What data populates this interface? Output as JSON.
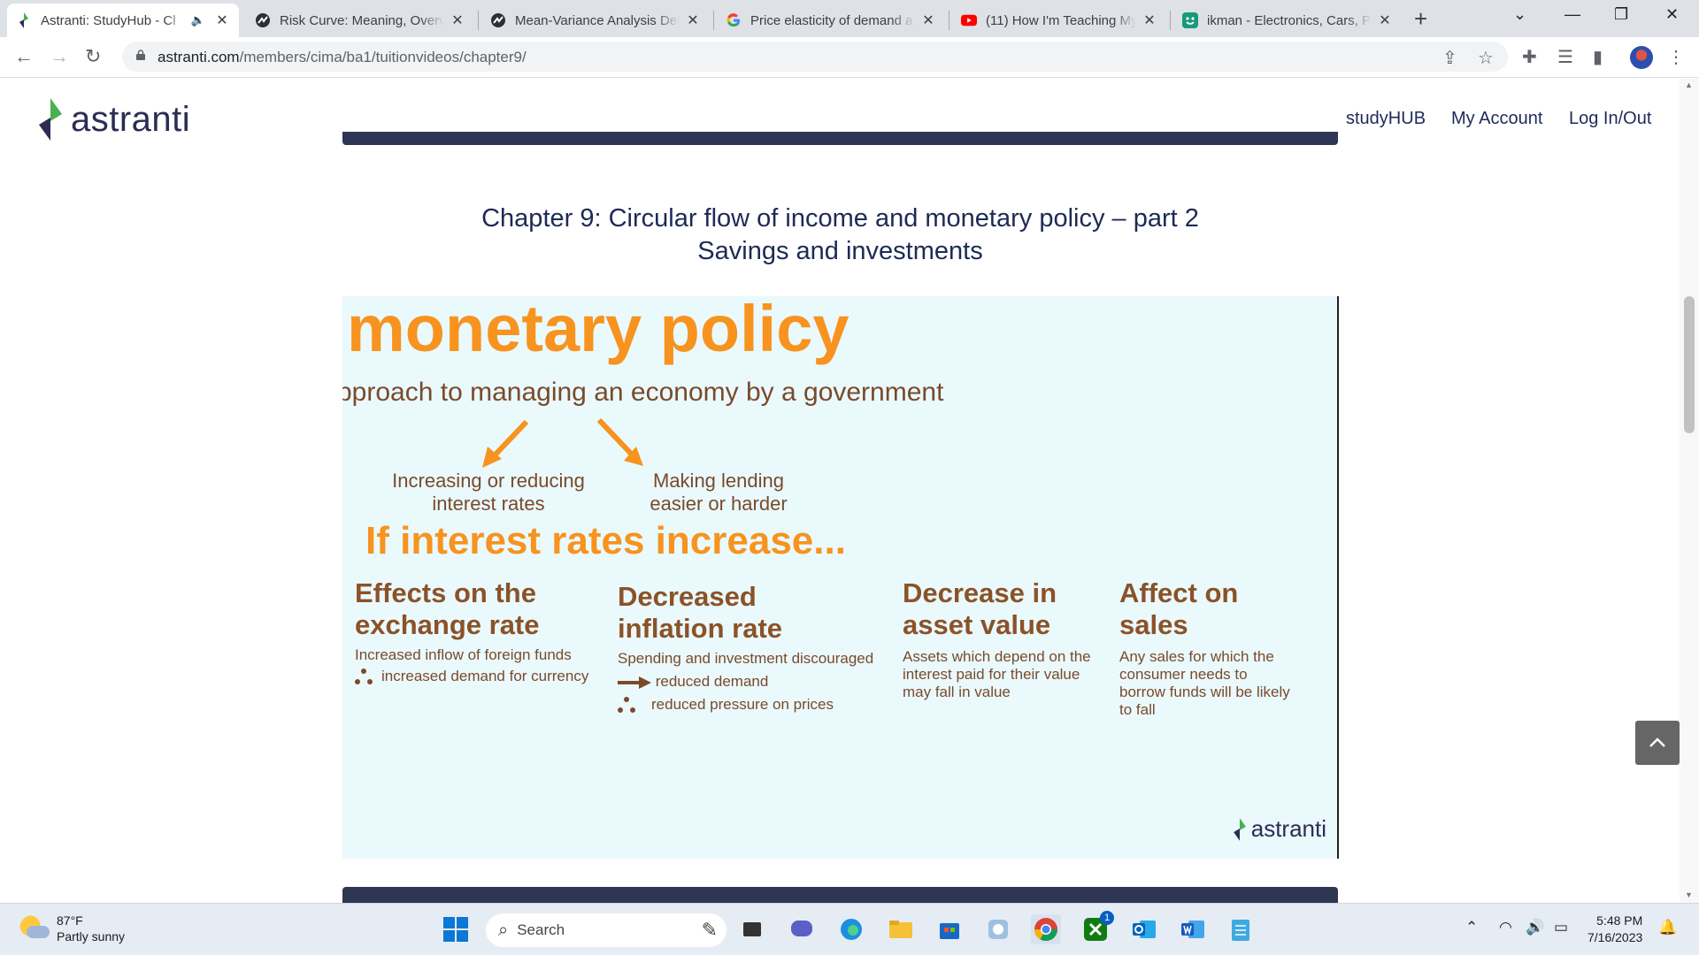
{
  "browser": {
    "tabs": [
      {
        "title": "Astranti: StudyHub - Cl",
        "active": true,
        "icon": "astranti-leaf-icon"
      },
      {
        "title": "Risk Curve: Meaning, Overv",
        "active": false,
        "icon": "investopedia-icon"
      },
      {
        "title": "Mean-Variance Analysis Def",
        "active": false,
        "icon": "investopedia-icon"
      },
      {
        "title": "Price elasticity of demand a",
        "active": false,
        "icon": "google-icon"
      },
      {
        "title": "(11) How I'm Teaching Myse",
        "active": false,
        "icon": "youtube-icon"
      },
      {
        "title": "ikman - Electronics, Cars, Pr",
        "active": false,
        "icon": "ikman-icon"
      }
    ],
    "url_host": "astranti.com",
    "url_path": "/members/cima/ba1/tuitionvideos/chapter9/"
  },
  "site": {
    "logo_text": "astranti",
    "nav": [
      "studyHUB",
      "My Account",
      "Log In/Out"
    ]
  },
  "content": {
    "chapter_title_line1": "Chapter 9: Circular flow of income and monetary policy – part 2",
    "chapter_title_line2": "Savings and investments"
  },
  "slide": {
    "heading": "monetary policy",
    "subheading": "pproach to managing an economy by a government",
    "branch_left_1": "Increasing or reducing",
    "branch_left_2": "interest rates",
    "branch_right_1": "Making lending",
    "branch_right_2": "easier or harder",
    "if_heading": "If interest rates increase...",
    "columns": [
      {
        "title_1": "Effects on the",
        "title_2": "exchange rate",
        "line1": "Increased inflow of foreign funds",
        "line2": "increased demand for currency"
      },
      {
        "title_1": "Decreased",
        "title_2": "inflation rate",
        "line1": "Spending and investment discouraged",
        "line2": "reduced demand",
        "line3": "reduced pressure on prices"
      },
      {
        "title_1": "Decrease in",
        "title_2": "asset value",
        "line1": "Assets which depend on the",
        "line2": "interest paid for their value",
        "line3": "may fall in value"
      },
      {
        "title_1": "Affect on",
        "title_2": "sales",
        "line1": "Any sales for which the",
        "line2": "consumer needs to",
        "line3": "borrow funds will be likely",
        "line4": "to fall"
      }
    ],
    "logo_text": "astranti",
    "accent_color": "#f7931e",
    "text_color": "#7a4a2b"
  },
  "taskbar": {
    "weather_temp": "87°F",
    "weather_desc": "Partly sunny",
    "search_placeholder": "Search",
    "time": "5:48 PM",
    "date": "7/16/2023",
    "xbox_badge": "1"
  }
}
